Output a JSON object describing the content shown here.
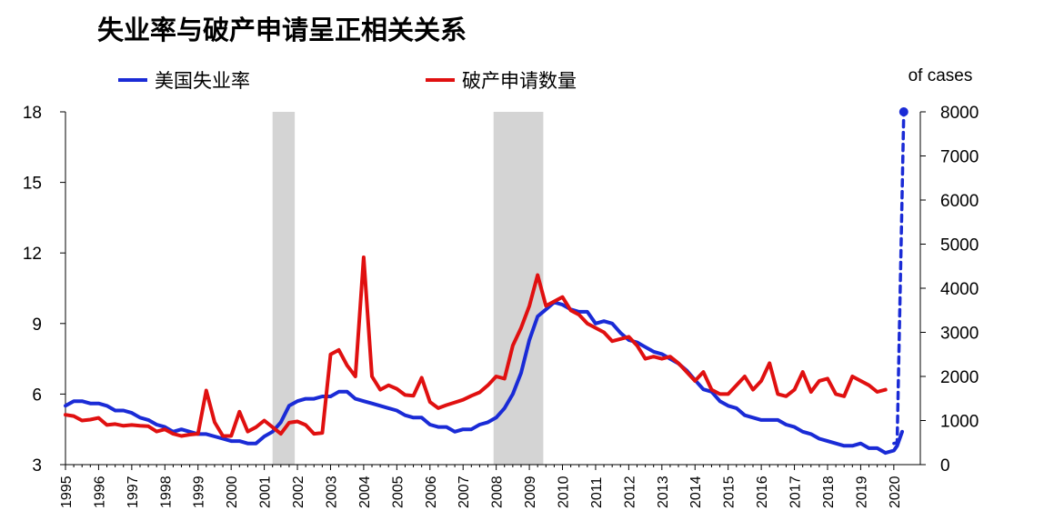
{
  "chart_data": {
    "type": "line",
    "title": "失业率与破产申请呈正相关关系",
    "y2_unit_label": "of cases",
    "ylim": [
      3,
      18
    ],
    "y_ticks": [
      3,
      6,
      9,
      12,
      15,
      18
    ],
    "y2lim": [
      0,
      8000
    ],
    "y2_ticks": [
      0,
      1000,
      2000,
      3000,
      4000,
      5000,
      6000,
      7000,
      8000
    ],
    "x_range": [
      1995,
      2020.8
    ],
    "x_ticks": [
      "1995",
      "1996",
      "1997",
      "1998",
      "1999",
      "2000",
      "2001",
      "2002",
      "2003",
      "2004",
      "2005",
      "2006",
      "2007",
      "2008",
      "2009",
      "2010",
      "2011",
      "2012",
      "2013",
      "2014",
      "2015",
      "2016",
      "2017",
      "2018",
      "2019",
      "2020"
    ],
    "recessions": [
      [
        2001.25,
        2001.92
      ],
      [
        2007.92,
        2009.42
      ]
    ],
    "legend_position": "top-left",
    "colors": {
      "unemployment": "#1a2bd6",
      "bankruptcy": "#e01010",
      "recession": "#d4d4d4"
    },
    "series": [
      {
        "name": "美国失业率",
        "axis": "left",
        "x": [
          1995.0,
          1995.25,
          1995.5,
          1995.75,
          1996.0,
          1996.25,
          1996.5,
          1996.75,
          1997.0,
          1997.25,
          1997.5,
          1997.75,
          1998.0,
          1998.25,
          1998.5,
          1998.75,
          1999.0,
          1999.25,
          1999.5,
          1999.75,
          2000.0,
          2000.25,
          2000.5,
          2000.75,
          2001.0,
          2001.25,
          2001.5,
          2001.75,
          2002.0,
          2002.25,
          2002.5,
          2002.75,
          2003.0,
          2003.25,
          2003.5,
          2003.75,
          2004.0,
          2004.25,
          2004.5,
          2004.75,
          2005.0,
          2005.25,
          2005.5,
          2005.75,
          2006.0,
          2006.25,
          2006.5,
          2006.75,
          2007.0,
          2007.25,
          2007.5,
          2007.75,
          2008.0,
          2008.25,
          2008.5,
          2008.75,
          2009.0,
          2009.25,
          2009.5,
          2009.75,
          2010.0,
          2010.25,
          2010.5,
          2010.75,
          2011.0,
          2011.25,
          2011.5,
          2011.75,
          2012.0,
          2012.25,
          2012.5,
          2012.75,
          2013.0,
          2013.25,
          2013.5,
          2013.75,
          2014.0,
          2014.25,
          2014.5,
          2014.75,
          2015.0,
          2015.25,
          2015.5,
          2015.75,
          2016.0,
          2016.25,
          2016.5,
          2016.75,
          2017.0,
          2017.25,
          2017.5,
          2017.75,
          2018.0,
          2018.25,
          2018.5,
          2018.75,
          2019.0,
          2019.25,
          2019.5,
          2019.75,
          2020.0,
          2020.1,
          2020.25
        ],
        "values": [
          5.5,
          5.7,
          5.7,
          5.6,
          5.6,
          5.5,
          5.3,
          5.3,
          5.2,
          5.0,
          4.9,
          4.7,
          4.6,
          4.4,
          4.5,
          4.4,
          4.3,
          4.3,
          4.2,
          4.1,
          4.0,
          4.0,
          3.9,
          3.9,
          4.2,
          4.4,
          4.8,
          5.5,
          5.7,
          5.8,
          5.8,
          5.9,
          5.9,
          6.1,
          6.1,
          5.8,
          5.7,
          5.6,
          5.5,
          5.4,
          5.3,
          5.1,
          5.0,
          5.0,
          4.7,
          4.6,
          4.6,
          4.4,
          4.5,
          4.5,
          4.7,
          4.8,
          5.0,
          5.4,
          6.0,
          6.9,
          8.3,
          9.3,
          9.6,
          9.9,
          9.8,
          9.6,
          9.5,
          9.5,
          9.0,
          9.1,
          9.0,
          8.6,
          8.3,
          8.2,
          8.0,
          7.8,
          7.7,
          7.5,
          7.3,
          7.0,
          6.6,
          6.2,
          6.1,
          5.7,
          5.5,
          5.4,
          5.1,
          5.0,
          4.9,
          4.9,
          4.9,
          4.7,
          4.6,
          4.4,
          4.3,
          4.1,
          4.0,
          3.9,
          3.8,
          3.8,
          3.9,
          3.7,
          3.7,
          3.5,
          3.6,
          3.8,
          4.4
        ]
      },
      {
        "name": "破产申请数量",
        "axis": "right",
        "x": [
          1995.0,
          1995.25,
          1995.5,
          1995.75,
          1996.0,
          1996.25,
          1996.5,
          1996.75,
          1997.0,
          1997.25,
          1997.5,
          1997.75,
          1998.0,
          1998.25,
          1998.5,
          1998.75,
          1999.0,
          1999.25,
          1999.5,
          1999.75,
          2000.0,
          2000.25,
          2000.5,
          2000.75,
          2001.0,
          2001.25,
          2001.5,
          2001.75,
          2002.0,
          2002.25,
          2002.5,
          2002.75,
          2003.0,
          2003.25,
          2003.5,
          2003.75,
          2004.0,
          2004.25,
          2004.5,
          2004.75,
          2005.0,
          2005.25,
          2005.5,
          2005.75,
          2006.0,
          2006.25,
          2006.5,
          2006.75,
          2007.0,
          2007.25,
          2007.5,
          2007.75,
          2008.0,
          2008.25,
          2008.5,
          2008.75,
          2009.0,
          2009.25,
          2009.5,
          2009.75,
          2010.0,
          2010.25,
          2010.5,
          2010.75,
          2011.0,
          2011.25,
          2011.5,
          2011.75,
          2012.0,
          2012.25,
          2012.5,
          2012.75,
          2013.0,
          2013.25,
          2013.5,
          2013.75,
          2014.0,
          2014.25,
          2014.5,
          2014.75,
          2015.0,
          2015.25,
          2015.5,
          2015.75,
          2016.0,
          2016.25,
          2016.5,
          2016.75,
          2017.0,
          2017.25,
          2017.5,
          2017.75,
          2018.0,
          2018.25,
          2018.5,
          2018.75,
          2019.0,
          2019.25,
          2019.5,
          2019.75
        ],
        "values": [
          1130,
          1100,
          1000,
          1020,
          1060,
          900,
          920,
          880,
          900,
          880,
          870,
          750,
          800,
          700,
          650,
          680,
          700,
          1680,
          960,
          650,
          650,
          1200,
          750,
          850,
          1000,
          850,
          700,
          950,
          980,
          900,
          700,
          720,
          2500,
          2600,
          2250,
          2000,
          4700,
          2000,
          1700,
          1800,
          1720,
          1580,
          1560,
          1970,
          1420,
          1280,
          1350,
          1410,
          1470,
          1560,
          1640,
          1800,
          2000,
          1950,
          2700,
          3100,
          3600,
          4300,
          3600,
          3700,
          3800,
          3500,
          3400,
          3200,
          3100,
          3000,
          2800,
          2850,
          2900,
          2700,
          2400,
          2450,
          2400,
          2450,
          2300,
          2100,
          1900,
          2100,
          1700,
          1600,
          1600,
          1800,
          2000,
          1700,
          1900,
          2300,
          1600,
          1550,
          1700,
          2100,
          1650,
          1900,
          1950,
          1600,
          1550,
          2000,
          1900,
          1800,
          1650,
          1700
        ]
      },
      {
        "name": "",
        "axis": "right",
        "style": "dashed",
        "x": [
          2020.0,
          2020.1,
          2020.3
        ],
        "values": [
          480,
          500,
          8000
        ]
      }
    ]
  }
}
